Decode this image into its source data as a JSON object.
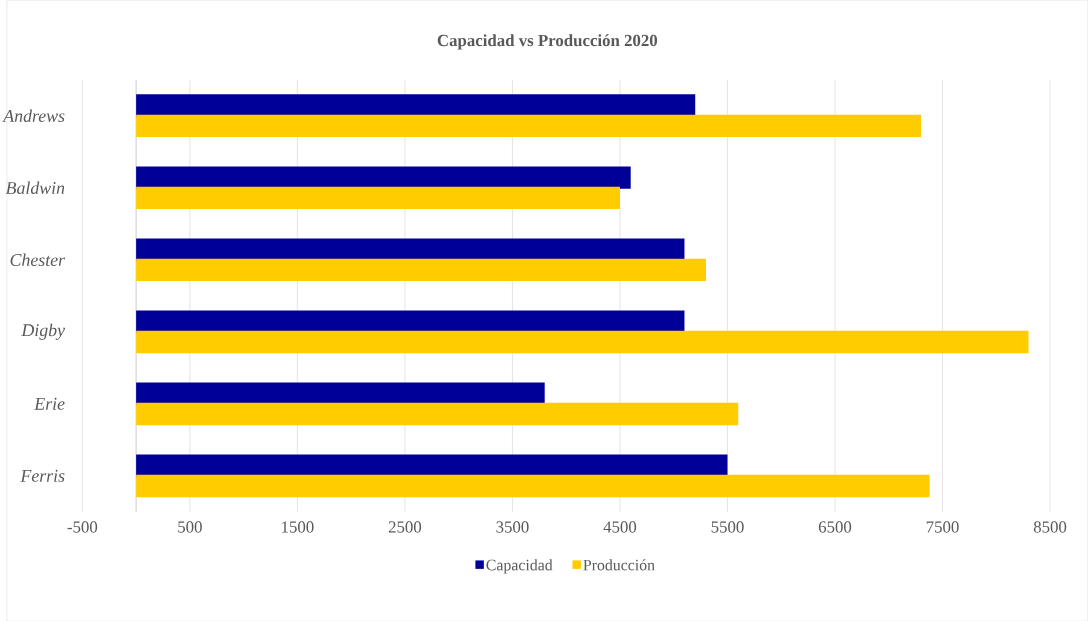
{
  "chart_data": {
    "type": "bar",
    "orientation": "horizontal",
    "title": "Capacidad  vs Producción  2020",
    "categories": [
      "Andrews",
      "Baldwin",
      "Chester",
      "Digby",
      "Erie",
      "Ferris"
    ],
    "series": [
      {
        "name": "Capacidad",
        "color": "#000099",
        "values": [
          5200,
          4600,
          5100,
          5100,
          3800,
          5500
        ]
      },
      {
        "name": "Producción",
        "color": "#ffcc00",
        "values": [
          7300,
          4500,
          5300,
          8300,
          5600,
          7380
        ]
      }
    ],
    "xlim": [
      -500,
      8500
    ],
    "xticks": [
      -500,
      500,
      1500,
      2500,
      3500,
      4500,
      5500,
      6500,
      7500,
      8500
    ],
    "grid": "x",
    "legend": "bottom"
  }
}
